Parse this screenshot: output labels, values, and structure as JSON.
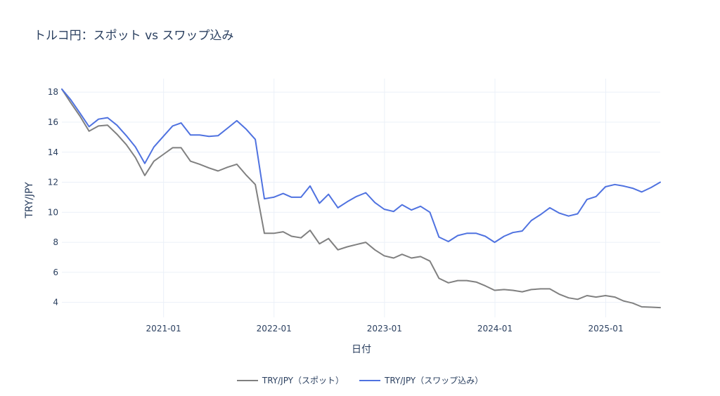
{
  "chart_data": {
    "type": "line",
    "title": "トルコ円：スポット vs スワップ込み",
    "xlabel": "日付",
    "ylabel": "TRY/JPY",
    "x_tick_labels": [
      "2021-01",
      "2022-01",
      "2023-01",
      "2024-01",
      "2025-01"
    ],
    "x_tick_dates": [
      "2021-01-01",
      "2022-01-01",
      "2023-01-01",
      "2024-01-01",
      "2025-01-01"
    ],
    "y_ticks": [
      4,
      6,
      8,
      10,
      12,
      14,
      16,
      18
    ],
    "xlim": [
      "2020-01-31",
      "2025-06-30"
    ],
    "ylim": [
      3.0,
      18.9
    ],
    "grid": true,
    "legend_position": "bottom",
    "x": [
      "2020-01-31",
      "2020-02-29",
      "2020-03-31",
      "2020-04-30",
      "2020-05-31",
      "2020-06-30",
      "2020-07-31",
      "2020-08-31",
      "2020-09-30",
      "2020-10-31",
      "2020-11-30",
      "2020-12-31",
      "2021-01-31",
      "2021-02-28",
      "2021-03-31",
      "2021-04-30",
      "2021-05-31",
      "2021-06-30",
      "2021-07-31",
      "2021-08-31",
      "2021-09-30",
      "2021-10-31",
      "2021-11-30",
      "2021-12-31",
      "2022-01-31",
      "2022-02-28",
      "2022-03-31",
      "2022-04-30",
      "2022-05-31",
      "2022-06-30",
      "2022-07-31",
      "2022-08-31",
      "2022-09-30",
      "2022-10-31",
      "2022-11-30",
      "2022-12-31",
      "2023-01-31",
      "2023-02-28",
      "2023-03-31",
      "2023-04-30",
      "2023-05-31",
      "2023-06-30",
      "2023-07-31",
      "2023-08-31",
      "2023-09-30",
      "2023-10-31",
      "2023-11-30",
      "2023-12-31",
      "2024-01-31",
      "2024-02-29",
      "2024-03-31",
      "2024-04-30",
      "2024-05-31",
      "2024-06-30",
      "2024-07-31",
      "2024-08-31",
      "2024-09-30",
      "2024-10-31",
      "2024-11-30",
      "2024-12-31",
      "2025-01-31",
      "2025-02-28",
      "2025-03-31",
      "2025-04-30",
      "2025-05-31",
      "2025-06-30"
    ],
    "series": [
      {
        "name": "TRY/JPY（スポット）",
        "color": "#808080",
        "values": [
          18.2,
          17.3,
          16.4,
          15.4,
          15.75,
          15.8,
          15.2,
          14.5,
          13.65,
          12.45,
          13.4,
          13.85,
          14.3,
          14.3,
          13.4,
          13.2,
          12.95,
          12.75,
          13.0,
          13.2,
          12.5,
          11.85,
          8.6,
          8.6,
          8.7,
          8.4,
          8.3,
          8.8,
          7.9,
          8.25,
          7.5,
          7.7,
          7.85,
          8.0,
          7.5,
          7.1,
          6.95,
          7.2,
          6.95,
          7.05,
          6.75,
          5.6,
          5.3,
          5.45,
          5.45,
          5.35,
          5.1,
          4.8,
          4.85,
          4.8,
          4.7,
          4.85,
          4.9,
          4.9,
          4.55,
          4.3,
          4.2,
          4.45,
          4.35,
          4.45,
          4.35,
          4.1,
          3.95,
          3.7,
          3.68,
          3.65
        ]
      },
      {
        "name": "TRY/JPY（スワップ込み）",
        "color": "#4f72e0",
        "values": [
          18.2,
          17.5,
          16.6,
          15.7,
          16.2,
          16.3,
          15.8,
          15.1,
          14.35,
          13.25,
          14.35,
          15.05,
          15.75,
          15.95,
          15.15,
          15.15,
          15.05,
          15.1,
          15.6,
          16.1,
          15.55,
          14.85,
          10.9,
          11.0,
          11.25,
          11.0,
          11.0,
          11.75,
          10.6,
          11.2,
          10.3,
          10.7,
          11.05,
          11.3,
          10.65,
          10.2,
          10.05,
          10.5,
          10.15,
          10.4,
          10.0,
          8.35,
          8.05,
          8.45,
          8.6,
          8.6,
          8.4,
          8.0,
          8.4,
          8.65,
          8.75,
          9.45,
          9.85,
          10.3,
          9.95,
          9.75,
          9.9,
          10.85,
          11.05,
          11.7,
          11.85,
          11.75,
          11.6,
          11.35,
          11.65,
          12.0
        ]
      }
    ]
  }
}
